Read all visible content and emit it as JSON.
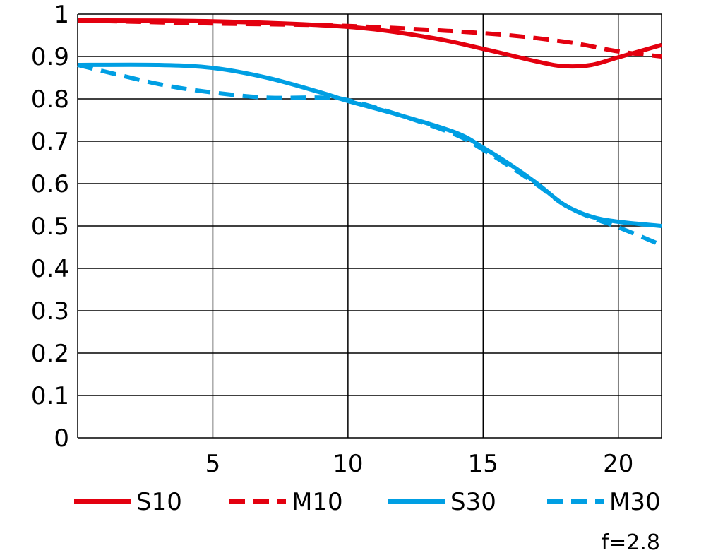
{
  "chart_data": {
    "type": "line",
    "title": "",
    "xlabel": "",
    "ylabel": "",
    "xlim": [
      0,
      21.6
    ],
    "ylim": [
      0,
      1
    ],
    "grid": true,
    "x_ticks": [
      "5",
      "10",
      "15",
      "20"
    ],
    "x_tick_values": [
      5,
      10,
      15,
      20
    ],
    "y_ticks": [
      "0",
      "0.1",
      "0.2",
      "0.3",
      "0.4",
      "0.5",
      "0.6",
      "0.7",
      "0.8",
      "0.9",
      "1"
    ],
    "y_tick_values": [
      0,
      0.1,
      0.2,
      0.3,
      0.4,
      0.5,
      0.6,
      0.7,
      0.8,
      0.9,
      1
    ],
    "legend_placement": "bottom",
    "annotation": "f=2.8",
    "series": [
      {
        "name": "S10",
        "color": "#e3000f",
        "dashed": false,
        "x": [
          0,
          5,
          10,
          13,
          15,
          17,
          18,
          19,
          20,
          21.6
        ],
        "y": [
          0.985,
          0.983,
          0.97,
          0.945,
          0.918,
          0.888,
          0.877,
          0.88,
          0.898,
          0.927
        ]
      },
      {
        "name": "M10",
        "color": "#e3000f",
        "dashed": true,
        "x": [
          0,
          5,
          10,
          15,
          18,
          20,
          21.6
        ],
        "y": [
          0.985,
          0.978,
          0.972,
          0.955,
          0.935,
          0.912,
          0.9
        ]
      },
      {
        "name": "S30",
        "color": "#009fe3",
        "dashed": false,
        "x": [
          0,
          3,
          5,
          7,
          9,
          10,
          12,
          14,
          15,
          16,
          17,
          18,
          19,
          20,
          21.6
        ],
        "y": [
          0.88,
          0.88,
          0.873,
          0.85,
          0.815,
          0.795,
          0.76,
          0.72,
          0.685,
          0.645,
          0.6,
          0.55,
          0.522,
          0.51,
          0.5
        ]
      },
      {
        "name": "M30",
        "color": "#009fe3",
        "dashed": true,
        "x": [
          0,
          3,
          5,
          7,
          9,
          10,
          12,
          14,
          15,
          16,
          17,
          18,
          19,
          20,
          21.6
        ],
        "y": [
          0.88,
          0.835,
          0.815,
          0.803,
          0.803,
          0.797,
          0.76,
          0.715,
          0.68,
          0.64,
          0.597,
          0.55,
          0.52,
          0.497,
          0.455
        ]
      }
    ]
  }
}
